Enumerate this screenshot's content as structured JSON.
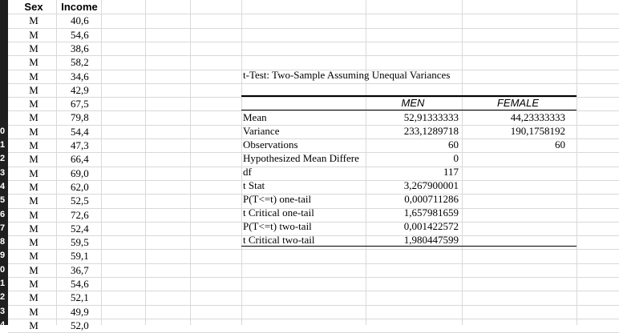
{
  "columns": {
    "sex": "Sex",
    "income": "Income"
  },
  "rows": [
    {
      "num": "",
      "sex": "M",
      "income": "40,6"
    },
    {
      "num": "",
      "sex": "M",
      "income": "54,6"
    },
    {
      "num": "",
      "sex": "M",
      "income": "38,6"
    },
    {
      "num": "",
      "sex": "M",
      "income": "58,2"
    },
    {
      "num": "",
      "sex": "M",
      "income": "34,6"
    },
    {
      "num": "",
      "sex": "M",
      "income": "42,9"
    },
    {
      "num": "",
      "sex": "M",
      "income": "67,5"
    },
    {
      "num": "",
      "sex": "M",
      "income": "79,8"
    },
    {
      "num": "0",
      "sex": "M",
      "income": "54,4"
    },
    {
      "num": "1",
      "sex": "M",
      "income": "47,3"
    },
    {
      "num": "2",
      "sex": "M",
      "income": "66,4"
    },
    {
      "num": "3",
      "sex": "M",
      "income": "69,0"
    },
    {
      "num": "4",
      "sex": "M",
      "income": "62,0"
    },
    {
      "num": "5",
      "sex": "M",
      "income": "52,5"
    },
    {
      "num": "6",
      "sex": "M",
      "income": "72,6"
    },
    {
      "num": "7",
      "sex": "M",
      "income": "52,4"
    },
    {
      "num": "8",
      "sex": "M",
      "income": "59,5"
    },
    {
      "num": "9",
      "sex": "M",
      "income": "59,1"
    },
    {
      "num": "0",
      "sex": "M",
      "income": "36,7"
    },
    {
      "num": "1",
      "sex": "M",
      "income": "54,6"
    },
    {
      "num": "2",
      "sex": "M",
      "income": "52,1"
    },
    {
      "num": "3",
      "sex": "M",
      "income": "49,9"
    },
    {
      "num": "4",
      "sex": "M",
      "income": "52,0"
    }
  ],
  "ttest": {
    "title": "t-Test: Two-Sample Assuming Unequal Variances",
    "col1": "MEN",
    "col2": "FEMALE",
    "stats": [
      {
        "label": "Mean",
        "v1": "52,91333333",
        "v2": "44,23333333"
      },
      {
        "label": "Variance",
        "v1": "233,1289718",
        "v2": "190,1758192"
      },
      {
        "label": "Observations",
        "v1": "60",
        "v2": "60"
      },
      {
        "label": "Hypothesized Mean Differe",
        "v1": "0",
        "v2": ""
      },
      {
        "label": "df",
        "v1": "117",
        "v2": ""
      },
      {
        "label": "t Stat",
        "v1": "3,267900001",
        "v2": ""
      },
      {
        "label": "P(T<=t) one-tail",
        "v1": "0,000711286",
        "v2": ""
      },
      {
        "label": "t Critical one-tail",
        "v1": "1,657981659",
        "v2": ""
      },
      {
        "label": "P(T<=t) two-tail",
        "v1": "0,001422572",
        "v2": ""
      },
      {
        "label": "t Critical two-tail",
        "v1": "1,980447599",
        "v2": ""
      }
    ]
  }
}
